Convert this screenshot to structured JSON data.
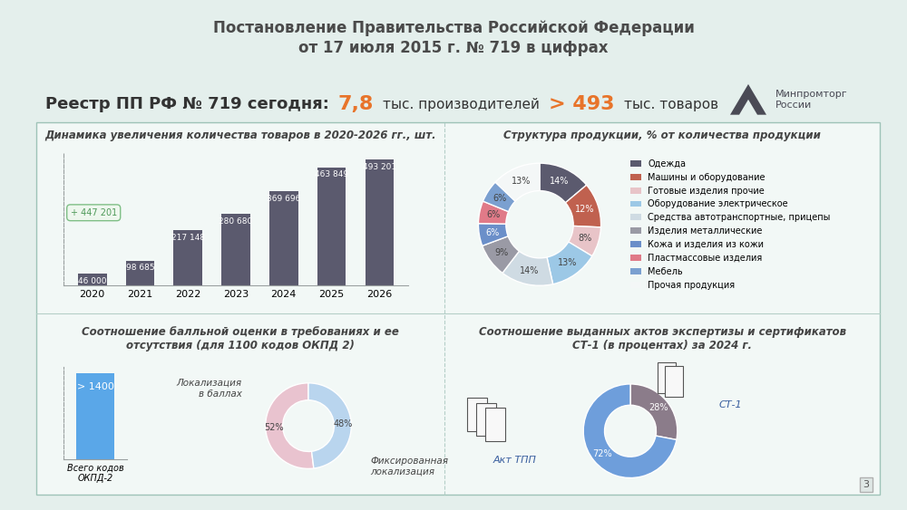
{
  "header": {
    "title": "Постановление Правительства Российской Федерации\nот 17 июля 2015 г. № 719 в цифрах",
    "logo": "Минпромторг России",
    "registry": {
      "label": "Реестр ПП РФ № 719 сегодня:",
      "producers": "7,8",
      "producers_unit": "тыс. производителей",
      "products": "> 493",
      "products_unit": "тыс. товаров"
    },
    "page": "3"
  },
  "chart_data": [
    {
      "type": "bar",
      "title": "Динамика увеличения количества товаров в 2020-2026 гг., шт.",
      "categories": [
        "2020",
        "2021",
        "2022",
        "2023",
        "2024",
        "2025",
        "2026"
      ],
      "values": [
        46000,
        98685,
        217148,
        280680,
        369696,
        463849,
        493201
      ],
      "value_labels": [
        "46 000",
        "98 685",
        "217 148",
        "280 680",
        "369 696",
        "463 849",
        "493 201"
      ],
      "data_labels": true,
      "annotation": "+ 447 201",
      "color": "#5b5a6e",
      "ylim": [
        0,
        520000
      ],
      "yticks": [],
      "tick_labels": "x",
      "grid": false
    },
    {
      "type": "pie",
      "title": "Структура продукции, % от количества продукции",
      "categories": [
        "Одежда",
        "Машины и оборудование",
        "Готовые изделия прочие",
        "Оборудование электрическое",
        "Средства автотранспортные, прицепы",
        "Изделия металлические",
        "Кожа и изделия из кожи",
        "Пластмассовые изделия",
        "Мебель",
        "Прочая продукция"
      ],
      "values": [
        14,
        12,
        8,
        13,
        14,
        9,
        6,
        6,
        6,
        13
      ],
      "value_labels": [
        "14%",
        "12%",
        "8%",
        "13%",
        "14%",
        "9%",
        "6%",
        "6%",
        "6%",
        "13%"
      ],
      "colors": [
        "#5b5a6e",
        "#c0614f",
        "#e8c4c8",
        "#9cc8e6",
        "#cfdbe3",
        "#9a9aa5",
        "#6b8fc9",
        "#e07a88",
        "#7ba0d0",
        "#f4f7f7"
      ],
      "data_labels": true,
      "legend": "right"
    },
    {
      "type": "bar",
      "title": "Соотношение балльной оценки в требованиях и ее отсутствия (для 1100 кодов ОКПД 2)",
      "categories": [
        "Всего кодов ОКПД-2"
      ],
      "values": [
        1400
      ],
      "value_labels": [
        "> 1400"
      ],
      "data_labels": true,
      "color": "#5aa7e8",
      "ylim": [
        0,
        1500
      ],
      "yticks": [],
      "tick_labels": "x",
      "grid": false
    },
    {
      "type": "pie",
      "categories": [
        "Локализация в баллах",
        "Фиксированная локализация"
      ],
      "values": [
        52,
        48
      ],
      "value_labels": [
        "52%",
        "48%"
      ],
      "colors": [
        "#e9c3cf",
        "#b9d5ee"
      ],
      "data_labels": true
    },
    {
      "type": "pie",
      "title": "Соотношение выданных актов экспертизы и сертификатов СТ-1 (в процентах) за 2024 г.",
      "categories": [
        "СТ-1",
        "Акт ТПП"
      ],
      "values": [
        28,
        72
      ],
      "value_labels": [
        "28%",
        "72%"
      ],
      "colors": [
        "#8b7c8a",
        "#6e9edb"
      ],
      "data_labels": true
    }
  ]
}
